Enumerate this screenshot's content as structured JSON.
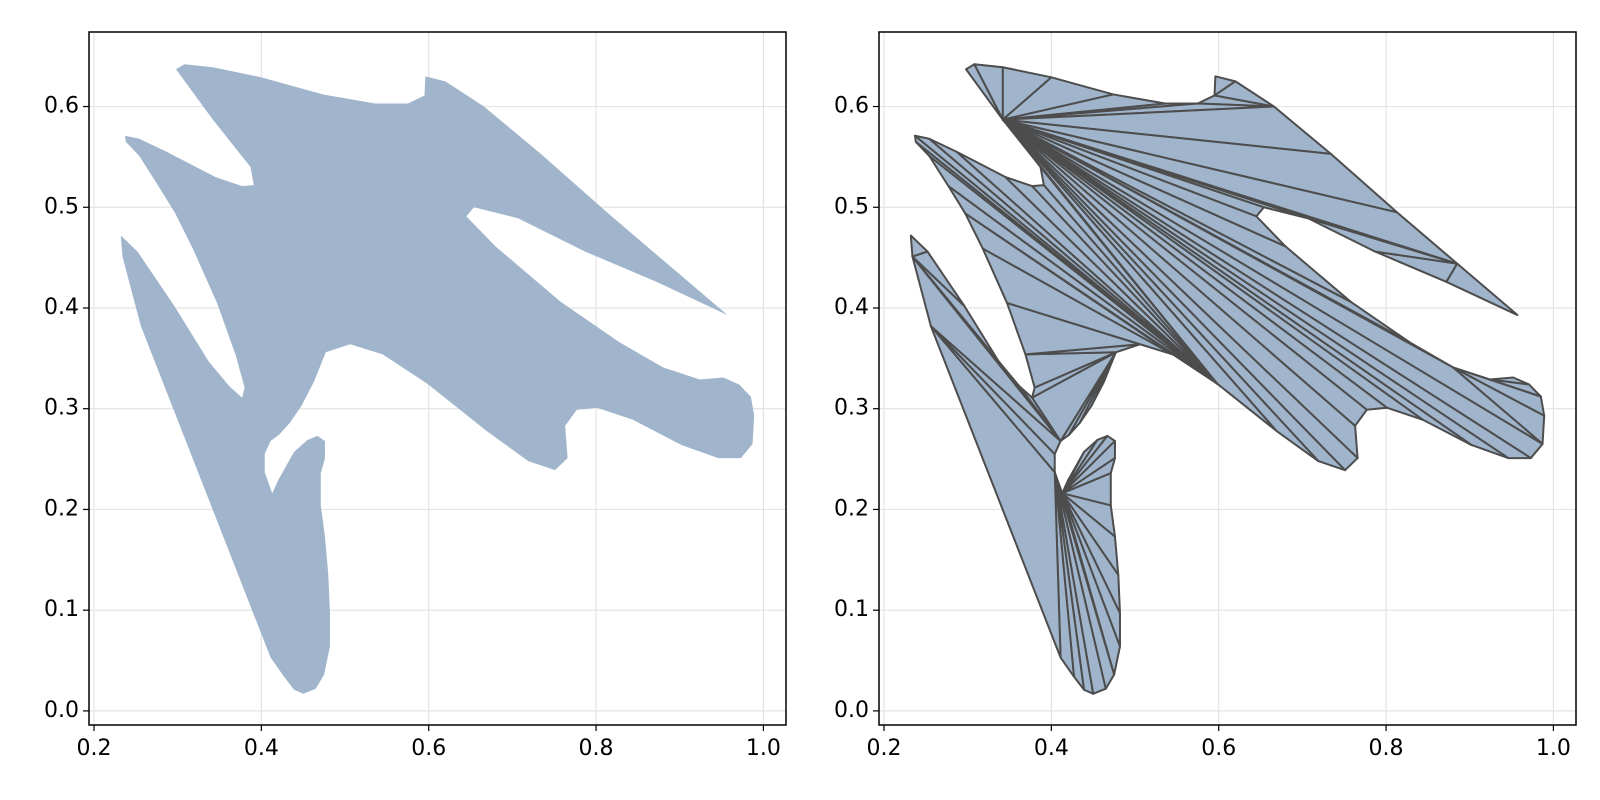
{
  "chart_data": [
    {
      "type": "polygon",
      "color": "#a0b5cc",
      "grid": true,
      "xlim": [
        0.194,
        1.027
      ],
      "ylim": [
        -0.014,
        0.674
      ],
      "xticks": [
        {
          "value": 0.2,
          "label": "0.2"
        },
        0.4,
        0.6,
        0.8,
        {
          "value": 1,
          "label": "1.0"
        }
      ],
      "yticks": [
        {
          "value": 0,
          "label": "0.0"
        },
        0.1,
        0.2,
        0.3,
        0.4,
        0.5,
        0.6
      ],
      "x": [
        0.298,
        0.308,
        0.342,
        0.4,
        0.474,
        0.536,
        0.575,
        0.595,
        0.596,
        0.62,
        0.666,
        0.734,
        0.813,
        0.885,
        0.957,
        0.872,
        0.787,
        0.707,
        0.654,
        0.645,
        0.68,
        0.758,
        0.828,
        0.88,
        0.924,
        0.952,
        0.971,
        0.985,
        0.989,
        0.987,
        0.973,
        0.946,
        0.902,
        0.844,
        0.801,
        0.777,
        0.763,
        0.766,
        0.751,
        0.719,
        0.669,
        0.598,
        0.545,
        0.506,
        0.477,
        0.463,
        0.448,
        0.434,
        0.421,
        0.411,
        0.404,
        0.404,
        0.413,
        0.42,
        0.439,
        0.455,
        0.467,
        0.476,
        0.476,
        0.471,
        0.471,
        0.476,
        0.48,
        0.482,
        0.482,
        0.475,
        0.465,
        0.45,
        0.439,
        0.427,
        0.411,
        0.256,
        0.234,
        0.232,
        0.252,
        0.296,
        0.337,
        0.362,
        0.377,
        0.38,
        0.369,
        0.347,
        0.318,
        0.297,
        0.277,
        0.254,
        0.238,
        0.237,
        0.254,
        0.287,
        0.345,
        0.377,
        0.391,
        0.387,
        0.342
      ],
      "y": [
        0.637,
        0.642,
        0.639,
        0.629,
        0.612,
        0.603,
        0.603,
        0.611,
        0.63,
        0.625,
        0.6,
        0.553,
        0.495,
        0.444,
        0.393,
        0.426,
        0.456,
        0.489,
        0.5,
        0.491,
        0.461,
        0.406,
        0.366,
        0.341,
        0.329,
        0.331,
        0.324,
        0.312,
        0.293,
        0.265,
        0.251,
        0.251,
        0.264,
        0.289,
        0.301,
        0.299,
        0.283,
        0.251,
        0.239,
        0.248,
        0.278,
        0.325,
        0.354,
        0.364,
        0.356,
        0.327,
        0.303,
        0.286,
        0.274,
        0.268,
        0.255,
        0.237,
        0.216,
        0.229,
        0.257,
        0.269,
        0.273,
        0.268,
        0.251,
        0.236,
        0.204,
        0.173,
        0.135,
        0.097,
        0.064,
        0.036,
        0.022,
        0.017,
        0.021,
        0.034,
        0.053,
        0.382,
        0.451,
        0.472,
        0.456,
        0.402,
        0.347,
        0.322,
        0.311,
        0.321,
        0.354,
        0.405,
        0.459,
        0.494,
        0.521,
        0.551,
        0.565,
        0.571,
        0.568,
        0.555,
        0.53,
        0.521,
        0.522,
        0.54,
        0.587
      ]
    },
    {
      "type": "triangulated-polygon",
      "color": "#a0b5cc",
      "edge_color": "#4d4d4d",
      "grid": true,
      "xlim": [
        0.194,
        1.027
      ],
      "ylim": [
        -0.014,
        0.674
      ],
      "xticks": [
        {
          "value": 0.2,
          "label": "0.2"
        },
        0.4,
        0.6,
        0.8,
        {
          "value": 1,
          "label": "1.0"
        }
      ],
      "yticks": [
        {
          "value": 0,
          "label": "0.0"
        },
        0.1,
        0.2,
        0.3,
        0.4,
        0.5,
        0.6
      ],
      "x": [
        0.298,
        0.308,
        0.342,
        0.4,
        0.474,
        0.536,
        0.575,
        0.595,
        0.596,
        0.62,
        0.666,
        0.734,
        0.813,
        0.885,
        0.957,
        0.872,
        0.787,
        0.707,
        0.654,
        0.645,
        0.68,
        0.758,
        0.828,
        0.88,
        0.924,
        0.952,
        0.971,
        0.985,
        0.989,
        0.987,
        0.973,
        0.946,
        0.902,
        0.844,
        0.801,
        0.777,
        0.763,
        0.766,
        0.751,
        0.719,
        0.669,
        0.598,
        0.545,
        0.506,
        0.477,
        0.463,
        0.448,
        0.434,
        0.421,
        0.411,
        0.404,
        0.404,
        0.413,
        0.42,
        0.439,
        0.455,
        0.467,
        0.476,
        0.476,
        0.471,
        0.471,
        0.476,
        0.48,
        0.482,
        0.482,
        0.475,
        0.465,
        0.45,
        0.439,
        0.427,
        0.411,
        0.256,
        0.234,
        0.232,
        0.252,
        0.296,
        0.337,
        0.362,
        0.377,
        0.38,
        0.369,
        0.347,
        0.318,
        0.297,
        0.277,
        0.254,
        0.238,
        0.237,
        0.254,
        0.287,
        0.345,
        0.377,
        0.391,
        0.387,
        0.342
      ],
      "y": [
        0.637,
        0.642,
        0.639,
        0.629,
        0.612,
        0.603,
        0.603,
        0.611,
        0.63,
        0.625,
        0.6,
        0.553,
        0.495,
        0.444,
        0.393,
        0.426,
        0.456,
        0.489,
        0.5,
        0.491,
        0.461,
        0.406,
        0.366,
        0.341,
        0.329,
        0.331,
        0.324,
        0.312,
        0.293,
        0.265,
        0.251,
        0.251,
        0.264,
        0.289,
        0.301,
        0.299,
        0.283,
        0.251,
        0.239,
        0.248,
        0.278,
        0.325,
        0.354,
        0.364,
        0.356,
        0.327,
        0.303,
        0.286,
        0.274,
        0.268,
        0.255,
        0.237,
        0.216,
        0.229,
        0.257,
        0.269,
        0.273,
        0.268,
        0.251,
        0.236,
        0.204,
        0.173,
        0.135,
        0.097,
        0.064,
        0.036,
        0.022,
        0.017,
        0.021,
        0.034,
        0.053,
        0.382,
        0.451,
        0.472,
        0.456,
        0.402,
        0.347,
        0.322,
        0.311,
        0.321,
        0.354,
        0.405,
        0.459,
        0.494,
        0.521,
        0.551,
        0.565,
        0.571,
        0.568,
        0.555,
        0.53,
        0.521,
        0.522,
        0.54,
        0.587
      ]
    }
  ]
}
